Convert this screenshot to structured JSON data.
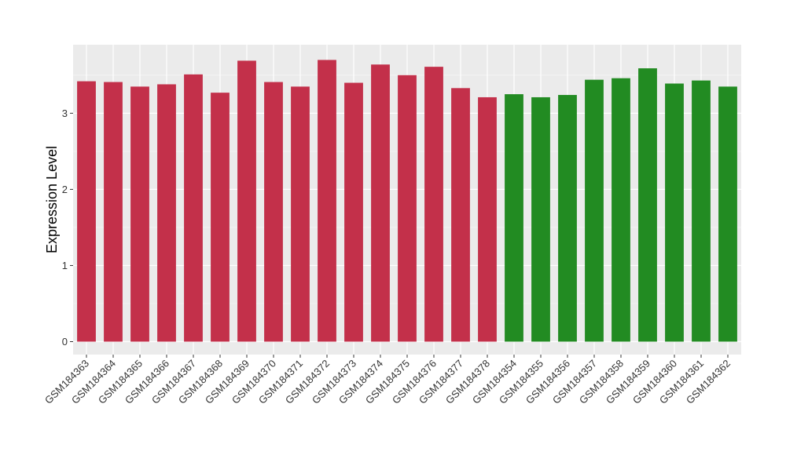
{
  "chart_data": {
    "type": "bar",
    "ylabel": "Expression Level",
    "xlabel": "",
    "title": "",
    "ylim": [
      -0.17,
      3.9
    ],
    "yticks": [
      0,
      1,
      2,
      3
    ],
    "grid": true,
    "panel_background": "#EBEBEB",
    "categories": [
      "GSM184363",
      "GSM184364",
      "GSM184365",
      "GSM184366",
      "GSM184367",
      "GSM184368",
      "GSM184369",
      "GSM184370",
      "GSM184371",
      "GSM184372",
      "GSM184373",
      "GSM184374",
      "GSM184375",
      "GSM184376",
      "GSM184377",
      "GSM184378",
      "GSM184354",
      "GSM184355",
      "GSM184356",
      "GSM184357",
      "GSM184358",
      "GSM184359",
      "GSM184360",
      "GSM184361",
      "GSM184362"
    ],
    "values": [
      3.42,
      3.41,
      3.35,
      3.38,
      3.51,
      3.27,
      3.69,
      3.41,
      3.35,
      3.7,
      3.4,
      3.64,
      3.5,
      3.61,
      3.33,
      3.21,
      3.25,
      3.21,
      3.24,
      3.44,
      3.46,
      3.59,
      3.39,
      3.43,
      3.35
    ],
    "colors": [
      "#C3304A",
      "#C3304A",
      "#C3304A",
      "#C3304A",
      "#C3304A",
      "#C3304A",
      "#C3304A",
      "#C3304A",
      "#C3304A",
      "#C3304A",
      "#C3304A",
      "#C3304A",
      "#C3304A",
      "#C3304A",
      "#C3304A",
      "#C3304A",
      "#228B22",
      "#228B22",
      "#228B22",
      "#228B22",
      "#228B22",
      "#228B22",
      "#228B22",
      "#228B22",
      "#228B22"
    ]
  }
}
